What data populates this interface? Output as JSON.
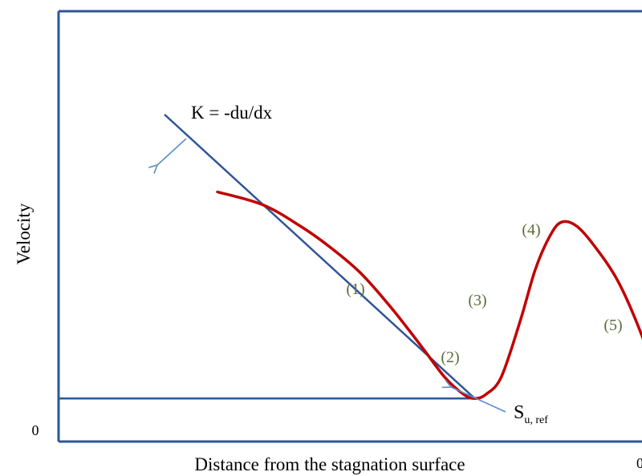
{
  "chart_data": {
    "type": "line",
    "title": "",
    "xlabel": "Distance from the stagnation surface",
    "ylabel": "Velocity",
    "x_origin_label": "0",
    "y_origin_label": "0",
    "colors": {
      "axis": "#2f5597",
      "tangent": "#2f5597",
      "velocity": "#c00000",
      "label": "#5a6e3a",
      "arrow": "#5b8dc9"
    },
    "series": [
      {
        "role": "velocity-profile",
        "points": [
          [
            0.21,
            0.58
          ],
          [
            0.27,
            0.55
          ],
          [
            0.32,
            0.5
          ],
          [
            0.36,
            0.45
          ],
          [
            0.4,
            0.39
          ],
          [
            0.44,
            0.31
          ],
          [
            0.48,
            0.22
          ],
          [
            0.51,
            0.15
          ],
          [
            0.535,
            0.11
          ],
          [
            0.55,
            0.1
          ],
          [
            0.565,
            0.11
          ],
          [
            0.585,
            0.15
          ],
          [
            0.61,
            0.28
          ],
          [
            0.63,
            0.4
          ],
          [
            0.65,
            0.48
          ],
          [
            0.665,
            0.51
          ],
          [
            0.685,
            0.5
          ],
          [
            0.71,
            0.45
          ],
          [
            0.74,
            0.37
          ],
          [
            0.77,
            0.25
          ],
          [
            0.8,
            0.1
          ],
          [
            0.82,
            0.0
          ]
        ]
      },
      {
        "role": "tangent-line",
        "points": [
          [
            0.14,
            0.76
          ],
          [
            0.55,
            0.1
          ]
        ]
      },
      {
        "role": "reference-line",
        "points": [
          [
            0.0,
            0.1
          ],
          [
            0.55,
            0.1
          ]
        ]
      }
    ],
    "annotations": {
      "tangent_label": "K = -du/dx",
      "su_ref": {
        "main": "S",
        "sub": "u, ref"
      },
      "regions": [
        "(1)",
        "(2)",
        "(3)",
        "(4)",
        "(5)"
      ]
    }
  }
}
